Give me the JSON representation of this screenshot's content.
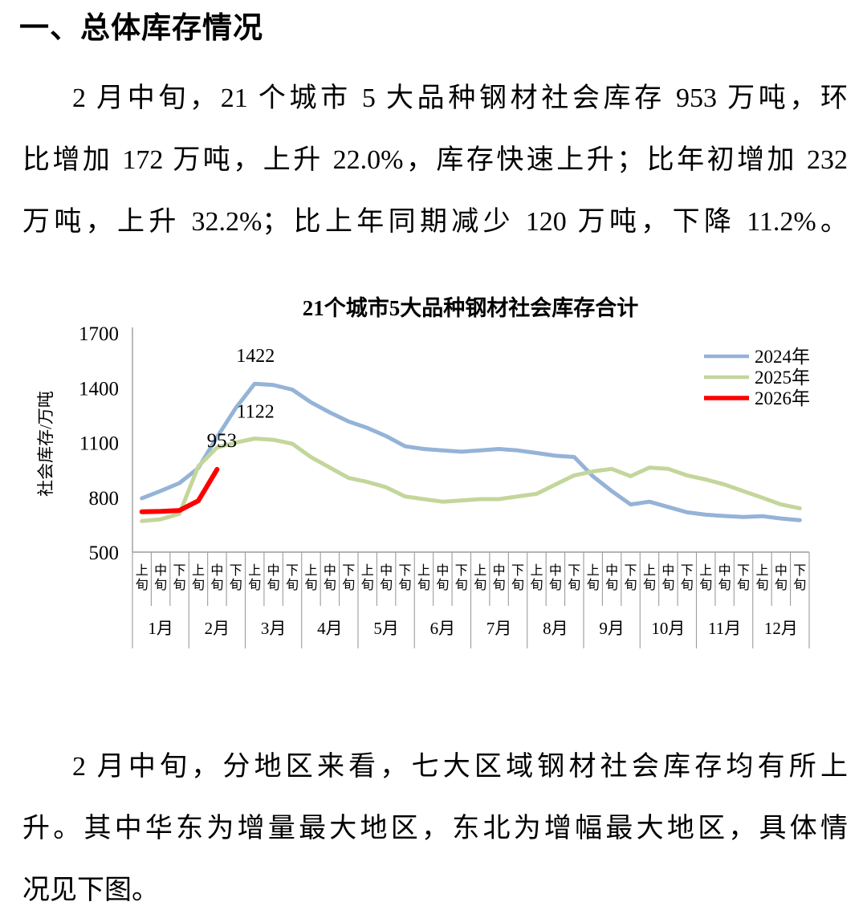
{
  "heading": "一、总体库存情况",
  "paragraph1": {
    "lines": [
      "2 月中旬，21 个城市 5 大品种钢材社会库存 953 万吨，环",
      "比增加 172 万吨，上升 22.0%，库存快速上升；比年初增加 232",
      "万吨，上升 32.2%；比上年同期减少 120 万吨，下降 11.2%。"
    ]
  },
  "paragraph2": {
    "lines": [
      "2 月中旬，分地区来看，七大区域钢材社会库存均有所上",
      "升。其中华东为增量最大地区，东北为增幅最大地区，具体情",
      "况见下图。"
    ]
  },
  "chart_data": {
    "type": "line",
    "title": "21个城市5大品种钢材社会库存合计",
    "ylabel": "社会库存/万吨",
    "xlabel": "",
    "ylim": [
      500,
      1700
    ],
    "yticks": [
      500,
      800,
      1100,
      1400,
      1700
    ],
    "grid": false,
    "legend_position": "top-right",
    "categories_month": [
      "1月",
      "2月",
      "3月",
      "4月",
      "5月",
      "6月",
      "7月",
      "8月",
      "9月",
      "10月",
      "11月",
      "12月"
    ],
    "categories_sub": [
      "上旬",
      "中旬",
      "下旬"
    ],
    "series": [
      {
        "name": "2024年",
        "color": "#95b3d7",
        "values": [
          795,
          835,
          878,
          960,
          1130,
          1290,
          1422,
          1415,
          1390,
          1320,
          1265,
          1215,
          1180,
          1135,
          1080,
          1065,
          1057,
          1050,
          1057,
          1065,
          1057,
          1043,
          1028,
          1021,
          915,
          834,
          761,
          776,
          747,
          718,
          705,
          698,
          692,
          697,
          684,
          675
        ]
      },
      {
        "name": "2025年",
        "color": "#c3d69b",
        "values": [
          670,
          680,
          710,
          970,
          1073,
          1100,
          1122,
          1115,
          1094,
          1020,
          963,
          906,
          884,
          855,
          805,
          790,
          776,
          783,
          790,
          790,
          805,
          819,
          870,
          920,
          942,
          956,
          916,
          963,
          956,
          920,
          898,
          870,
          834,
          798,
          761,
          740
        ]
      },
      {
        "name": "2026年",
        "color": "#fe0000",
        "values": [
          721,
          723,
          728,
          781,
          953
        ]
      }
    ],
    "annotations": [
      {
        "text": "1422",
        "series": 0,
        "point": 6,
        "color": "#000000"
      },
      {
        "text": "1122",
        "series": 1,
        "point": 6,
        "color": "#000000"
      },
      {
        "text": "953",
        "series": 2,
        "point": 4,
        "color": "#fe0000"
      }
    ]
  }
}
